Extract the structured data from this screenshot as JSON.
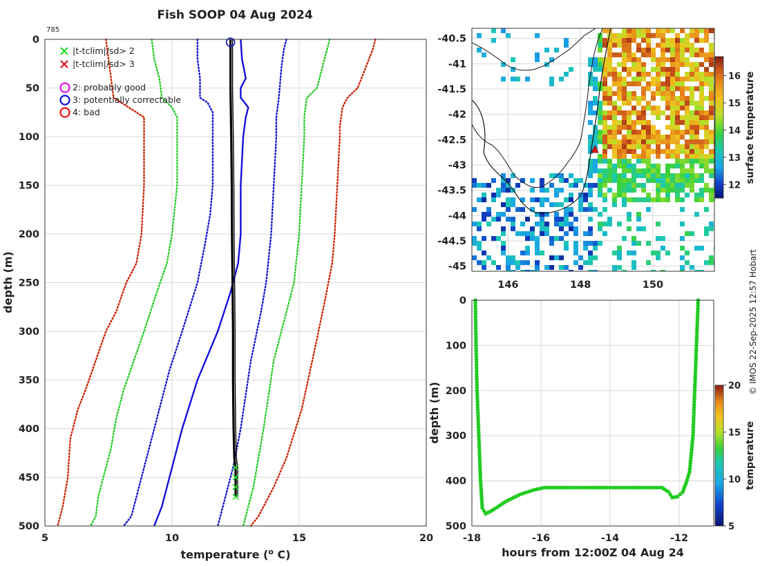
{
  "title": "Fish SOOP 04 Aug 2024",
  "profile_id": "785",
  "copyright": "© IMOS 22-Sep-2025 12:57 Hobart",
  "legend": {
    "crosses": [
      {
        "label": "|t-tclim|/sd> 2",
        "color": "#22dd22"
      },
      {
        "label": "|t-tclim|/sd> 3",
        "color": "#dd1111"
      }
    ],
    "circles": [
      {
        "label": "2: probably good",
        "color": "#dd11dd"
      },
      {
        "label": "3: potentially correctable",
        "color": "#1111dd"
      },
      {
        "label": "4: bad",
        "color": "#ee1111"
      }
    ]
  },
  "chart_data": [
    {
      "type": "line",
      "name": "temperature-profile",
      "title": "Fish SOOP 04 Aug 2024",
      "xlabel": "temperature (°C)",
      "ylabel": "depth (m)",
      "xlim": [
        5,
        20
      ],
      "ylim": [
        0,
        500
      ],
      "y_reversed": true,
      "xticks": [
        5,
        10,
        15,
        20
      ],
      "yticks": [
        0,
        50,
        100,
        150,
        200,
        250,
        300,
        350,
        400,
        450,
        500
      ],
      "grid": true,
      "series": [
        {
          "name": "clim -3sd",
          "style": "dotted",
          "color": "#cc2200",
          "points": [
            [
              7.4,
              0
            ],
            [
              7.5,
              20
            ],
            [
              7.6,
              40
            ],
            [
              7.7,
              60
            ],
            [
              8.3,
              70
            ],
            [
              8.9,
              80
            ],
            [
              8.9,
              100
            ],
            [
              8.9,
              150
            ],
            [
              8.8,
              200
            ],
            [
              8.6,
              230
            ],
            [
              8.2,
              250
            ],
            [
              7.8,
              280
            ],
            [
              7.4,
              300
            ],
            [
              7.0,
              330
            ],
            [
              6.6,
              360
            ],
            [
              6.3,
              380
            ],
            [
              6.0,
              410
            ],
            [
              5.9,
              450
            ],
            [
              5.7,
              480
            ],
            [
              5.5,
              500
            ]
          ]
        },
        {
          "name": "clim -2sd",
          "style": "dotted",
          "color": "#22cc22",
          "points": [
            [
              9.2,
              0
            ],
            [
              9.3,
              20
            ],
            [
              9.5,
              40
            ],
            [
              9.6,
              60
            ],
            [
              10.0,
              70
            ],
            [
              10.2,
              80
            ],
            [
              10.2,
              100
            ],
            [
              10.2,
              150
            ],
            [
              10.0,
              200
            ],
            [
              9.8,
              230
            ],
            [
              9.4,
              260
            ],
            [
              8.9,
              300
            ],
            [
              8.5,
              330
            ],
            [
              8.1,
              360
            ],
            [
              7.8,
              390
            ],
            [
              7.6,
              420
            ],
            [
              7.3,
              450
            ],
            [
              7.1,
              470
            ],
            [
              7.0,
              490
            ],
            [
              6.8,
              500
            ]
          ]
        },
        {
          "name": "clim -1sd",
          "style": "dotted",
          "color": "#1111cc",
          "points": [
            [
              11.0,
              0
            ],
            [
              11.0,
              20
            ],
            [
              11.1,
              40
            ],
            [
              11.1,
              60
            ],
            [
              11.4,
              65
            ],
            [
              11.6,
              75
            ],
            [
              11.6,
              100
            ],
            [
              11.6,
              150
            ],
            [
              11.5,
              180
            ],
            [
              11.3,
              210
            ],
            [
              11.0,
              250
            ],
            [
              10.4,
              300
            ],
            [
              9.9,
              340
            ],
            [
              9.5,
              380
            ],
            [
              9.2,
              410
            ],
            [
              8.8,
              450
            ],
            [
              8.6,
              470
            ],
            [
              8.4,
              490
            ],
            [
              8.1,
              500
            ]
          ]
        },
        {
          "name": "clim mean",
          "style": "solid",
          "color": "#1111dd",
          "points": [
            [
              12.7,
              0
            ],
            [
              12.75,
              20
            ],
            [
              12.9,
              40
            ],
            [
              12.7,
              50
            ],
            [
              12.7,
              60
            ],
            [
              13.0,
              70
            ],
            [
              12.9,
              80
            ],
            [
              12.8,
              100
            ],
            [
              12.7,
              150
            ],
            [
              12.7,
              200
            ],
            [
              12.6,
              230
            ],
            [
              12.3,
              260
            ],
            [
              11.8,
              300
            ],
            [
              11.0,
              350
            ],
            [
              10.4,
              400
            ],
            [
              9.9,
              450
            ],
            [
              9.6,
              480
            ],
            [
              9.3,
              500
            ]
          ]
        },
        {
          "name": "clim +1sd",
          "style": "dotted",
          "color": "#1111cc",
          "points": [
            [
              14.5,
              0
            ],
            [
              14.4,
              10
            ],
            [
              14.3,
              30
            ],
            [
              14.2,
              60
            ],
            [
              14.1,
              80
            ],
            [
              14.1,
              100
            ],
            [
              14.0,
              150
            ],
            [
              13.9,
              200
            ],
            [
              13.7,
              250
            ],
            [
              13.5,
              280
            ],
            [
              13.1,
              330
            ],
            [
              12.7,
              400
            ],
            [
              12.4,
              440
            ],
            [
              12.0,
              480
            ],
            [
              11.8,
              500
            ]
          ]
        },
        {
          "name": "clim +2sd",
          "style": "dotted",
          "color": "#22cc22",
          "points": [
            [
              16.2,
              0
            ],
            [
              16.1,
              10
            ],
            [
              15.9,
              30
            ],
            [
              15.7,
              50
            ],
            [
              15.3,
              60
            ],
            [
              15.2,
              80
            ],
            [
              15.2,
              100
            ],
            [
              15.1,
              150
            ],
            [
              15.0,
              200
            ],
            [
              14.8,
              250
            ],
            [
              14.5,
              280
            ],
            [
              14.0,
              330
            ],
            [
              13.6,
              400
            ],
            [
              13.2,
              460
            ],
            [
              13.0,
              480
            ],
            [
              12.8,
              500
            ]
          ]
        },
        {
          "name": "clim +3sd",
          "style": "dotted",
          "color": "#cc2200",
          "points": [
            [
              18.0,
              0
            ],
            [
              17.9,
              10
            ],
            [
              17.6,
              30
            ],
            [
              17.3,
              50
            ],
            [
              16.9,
              60
            ],
            [
              16.7,
              70
            ],
            [
              16.6,
              90
            ],
            [
              16.6,
              100
            ],
            [
              16.5,
              150
            ],
            [
              16.4,
              200
            ],
            [
              16.3,
              230
            ],
            [
              16.0,
              270
            ],
            [
              15.6,
              320
            ],
            [
              15.1,
              380
            ],
            [
              14.5,
              430
            ],
            [
              14.0,
              460
            ],
            [
              13.4,
              490
            ],
            [
              13.1,
              500
            ]
          ]
        },
        {
          "name": "observed profile",
          "style": "solid",
          "color": "#000000",
          "points": [
            [
              12.3,
              0
            ],
            [
              12.3,
              50
            ],
            [
              12.33,
              100
            ],
            [
              12.35,
              150
            ],
            [
              12.36,
              200
            ],
            [
              12.38,
              250
            ],
            [
              12.4,
              300
            ],
            [
              12.4,
              350
            ],
            [
              12.42,
              400
            ],
            [
              12.45,
              430
            ],
            [
              12.5,
              440
            ],
            [
              12.5,
              470
            ]
          ]
        }
      ],
      "flag_crosses_depths": [
        440,
        450,
        460,
        470
      ],
      "flag_crosses_temp": 12.5,
      "surface_flag_circle": [
        12.3,
        3
      ]
    },
    {
      "type": "heatmap",
      "name": "sst-map",
      "xlim": [
        145,
        151.7
      ],
      "ylim": [
        -45.1,
        -40.3
      ],
      "xticks": [
        146,
        148,
        150
      ],
      "yticks": [
        -40.5,
        -41,
        -41.5,
        -42,
        -42.5,
        -43,
        -43.5,
        -44,
        -44.5,
        -45
      ],
      "colorbar_label": "surface temperature",
      "colorbar_range": [
        11.5,
        16.7
      ],
      "colorbar_ticks": [
        12,
        13,
        14,
        15,
        16
      ],
      "marker": {
        "lon": 148.4,
        "lat": -42.7,
        "shape": "triangle",
        "color": "#dd1111"
      }
    },
    {
      "type": "scatter",
      "name": "depth-time",
      "xlabel": "hours from 12:00Z 04 Aug 24",
      "ylabel": "depth (m)",
      "xlim": [
        -18,
        -11
      ],
      "ylim": [
        0,
        500
      ],
      "y_reversed": true,
      "xticks": [
        -18,
        -16,
        -14,
        -12
      ],
      "yticks": [
        0,
        100,
        200,
        300,
        400,
        500
      ],
      "colorbar_label": "temperature",
      "colorbar_range": [
        5,
        20
      ],
      "colorbar_ticks": [
        5,
        10,
        15,
        20
      ],
      "marker_color": "#22cc22",
      "points": [
        [
          -17.9,
          0
        ],
        [
          -17.88,
          100
        ],
        [
          -17.85,
          200
        ],
        [
          -17.8,
          300
        ],
        [
          -17.75,
          400
        ],
        [
          -17.7,
          460
        ],
        [
          -17.6,
          473
        ],
        [
          -17.4,
          465
        ],
        [
          -17.0,
          445
        ],
        [
          -16.6,
          430
        ],
        [
          -16.2,
          420
        ],
        [
          -15.9,
          415
        ],
        [
          -15.5,
          415
        ],
        [
          -15,
          415
        ],
        [
          -14.5,
          415
        ],
        [
          -14,
          415
        ],
        [
          -13.5,
          415
        ],
        [
          -13,
          415
        ],
        [
          -12.5,
          415
        ],
        [
          -12.3,
          425
        ],
        [
          -12.2,
          437
        ],
        [
          -12.05,
          435
        ],
        [
          -11.9,
          425
        ],
        [
          -11.8,
          405
        ],
        [
          -11.7,
          380
        ],
        [
          -11.6,
          300
        ],
        [
          -11.55,
          200
        ],
        [
          -11.5,
          100
        ],
        [
          -11.45,
          0
        ]
      ]
    }
  ]
}
